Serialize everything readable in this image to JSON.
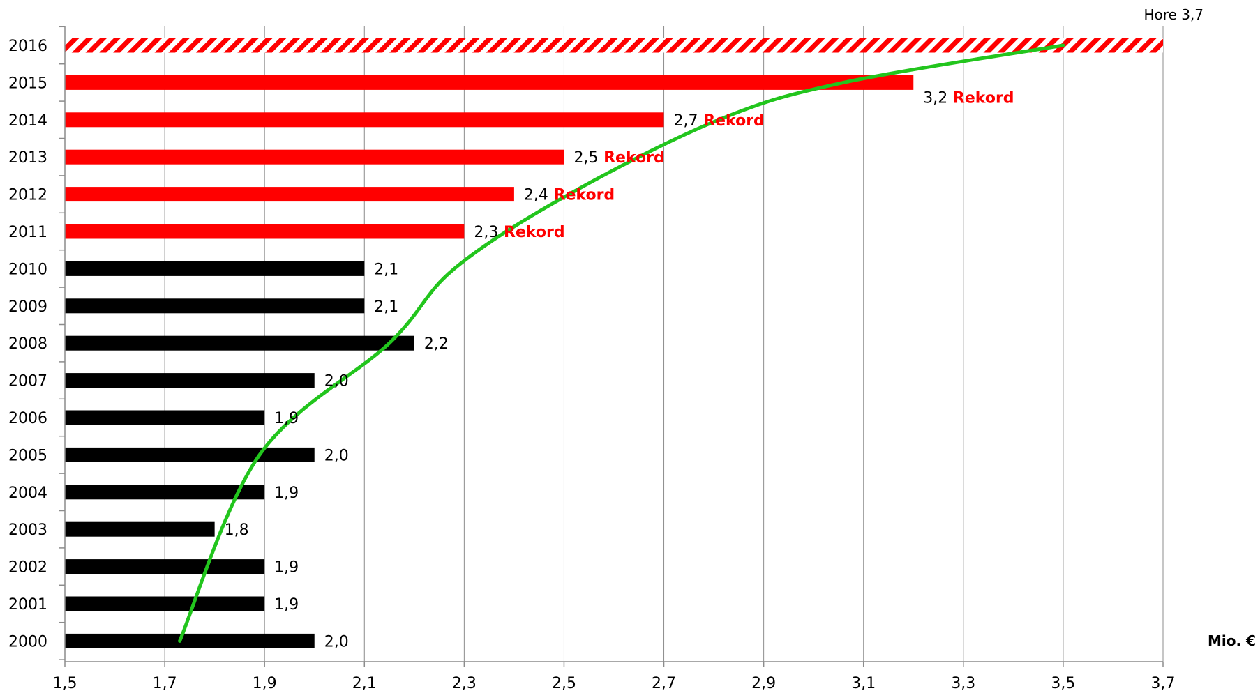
{
  "chart_data": {
    "type": "bar",
    "orientation": "horizontal",
    "categories": [
      "2016",
      "2015",
      "2014",
      "2013",
      "2012",
      "2011",
      "2010",
      "2009",
      "2008",
      "2007",
      "2006",
      "2005",
      "2004",
      "2003",
      "2002",
      "2001",
      "2000"
    ],
    "values": [
      3.7,
      3.2,
      2.7,
      2.5,
      2.4,
      2.3,
      2.1,
      2.1,
      2.2,
      2.0,
      1.9,
      2.0,
      1.9,
      1.8,
      1.9,
      1.9,
      2.0
    ],
    "value_labels": [
      "",
      "3,2",
      "2,7",
      "2,5",
      "2,4",
      "2,3",
      "2,1",
      "2,1",
      "2,2",
      "2,0",
      "1,9",
      "2,0",
      "1,9",
      "1,8",
      "1,9",
      "1,9",
      "2,0"
    ],
    "annotations": [
      "",
      "Rekord",
      "Rekord",
      "Rekord",
      "Rekord",
      "Rekord",
      "",
      "",
      "",
      "",
      "",
      "",
      "",
      "",
      "",
      "",
      ""
    ],
    "bar_styles": [
      "hatched",
      "red",
      "red",
      "red",
      "red",
      "red",
      "black",
      "black",
      "black",
      "black",
      "black",
      "black",
      "black",
      "black",
      "black",
      "black",
      "black"
    ],
    "xlim": [
      1.5,
      3.7
    ],
    "xticks": [
      1.5,
      1.7,
      1.9,
      2.1,
      2.3,
      2.5,
      2.7,
      2.9,
      3.1,
      3.3,
      3.5,
      3.7
    ],
    "xtick_labels": [
      "1,5",
      "1,7",
      "1,9",
      "2,1",
      "2,3",
      "2,5",
      "2,7",
      "2,9",
      "3,1",
      "3,3",
      "3,5",
      "3,7"
    ],
    "xlabel": "Mio. €",
    "top_annotation": "Hore 3,7",
    "grid": "vertical",
    "trend_curve": {
      "color": "#22c51d",
      "points": [
        {
          "year": "2000",
          "x": 1.73
        },
        {
          "year": "2005",
          "x": 1.89
        },
        {
          "year": "2008",
          "x": 2.15
        },
        {
          "year": "2010",
          "x": 2.28
        },
        {
          "year": "2012",
          "x": 2.51
        },
        {
          "year": "2014",
          "x": 2.81
        },
        {
          "year": "2015",
          "x": 3.06
        },
        {
          "year": "2016",
          "x": 3.5
        }
      ]
    },
    "colors": {
      "red": "#ff0000",
      "black": "#000000",
      "trend": "#22c51d",
      "annotation": "#ff0000"
    }
  }
}
